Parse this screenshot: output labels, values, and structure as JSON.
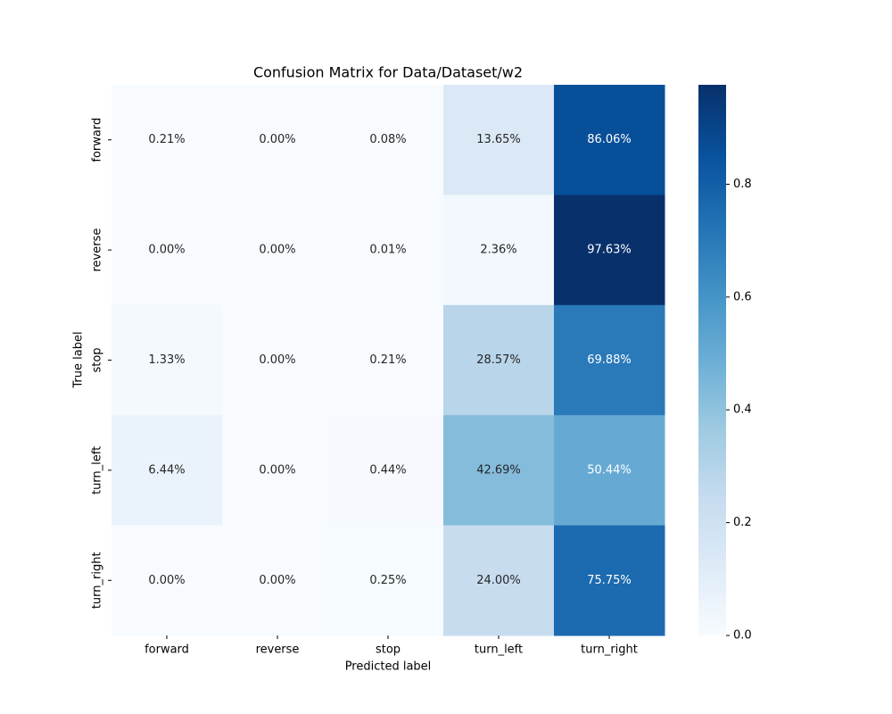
{
  "chart_data": {
    "type": "heatmap",
    "title": "Confusion Matrix for Data/Dataset/w2",
    "x_label": "Predicted label",
    "y_label": "True label",
    "x_categories": [
      "forward",
      "reverse",
      "stop",
      "turn_left",
      "turn_right"
    ],
    "y_categories": [
      "forward",
      "reverse",
      "stop",
      "turn_left",
      "turn_right"
    ],
    "values": [
      [
        0.0021,
        0,
        0.0008,
        0.1365,
        0.8606
      ],
      [
        0,
        0,
        0.0001,
        0.0236,
        0.9763
      ],
      [
        0.0133,
        0,
        0.0021,
        0.2857,
        0.6988
      ],
      [
        0.0644,
        0,
        0.0044,
        0.4269,
        0.5044
      ],
      [
        0,
        0,
        0.0025,
        0.24,
        0.7575
      ]
    ],
    "value_labels": [
      [
        "0.21%",
        "0.00%",
        "0.08%",
        "13.65%",
        "86.06%"
      ],
      [
        "0.00%",
        "0.00%",
        "0.01%",
        "2.36%",
        "97.63%"
      ],
      [
        "1.33%",
        "0.00%",
        "0.21%",
        "28.57%",
        "69.88%"
      ],
      [
        "6.44%",
        "0.00%",
        "0.44%",
        "42.69%",
        "50.44%"
      ],
      [
        "0.00%",
        "0.00%",
        "0.25%",
        "24.00%",
        "75.75%"
      ]
    ],
    "clim": [
      0,
      0.9763
    ],
    "cticks": [
      {
        "value": 0,
        "label": "0.0"
      },
      {
        "value": 0.2,
        "label": "0.2"
      },
      {
        "value": 0.4,
        "label": "0.4"
      },
      {
        "value": 0.6,
        "label": "0.6"
      },
      {
        "value": 0.8,
        "label": "0.8"
      }
    ],
    "colors": [
      "#f7fbff",
      "#deebf7",
      "#c6dbef",
      "#9ecae1",
      "#6baed6",
      "#4292c6",
      "#2171b5",
      "#08519c",
      "#08306b"
    ]
  }
}
